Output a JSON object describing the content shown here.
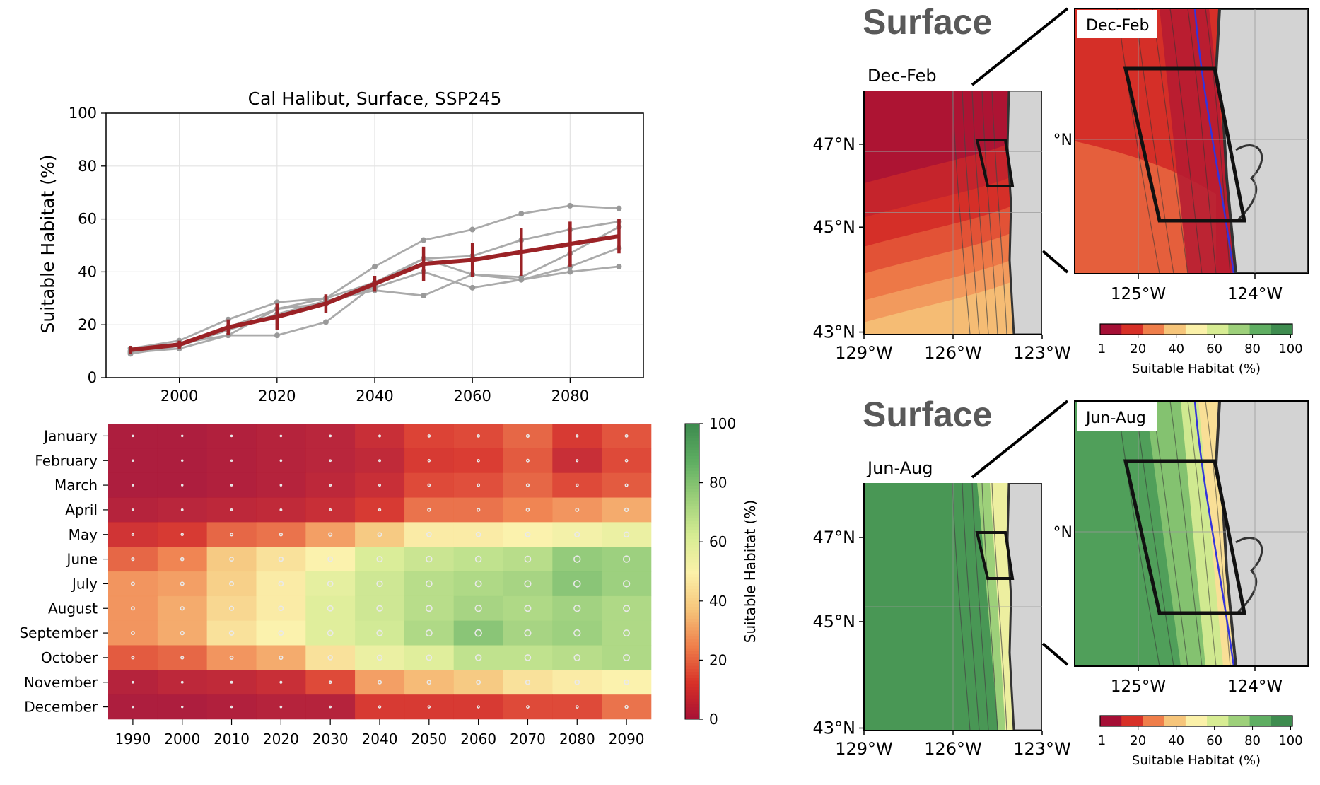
{
  "line_chart": {
    "title": "Cal Halibut, Surface, SSP245",
    "ylabel": "Suitable Habitat (%)",
    "xlim": [
      1985,
      2095
    ],
    "ylim": [
      0,
      100
    ],
    "xticks": [
      "2000",
      "2020",
      "2040",
      "2060",
      "2080"
    ],
    "yticks": [
      "0",
      "20",
      "40",
      "60",
      "80",
      "100"
    ]
  },
  "heatmap": {
    "months": [
      "January",
      "February",
      "March",
      "April",
      "May",
      "June",
      "July",
      "August",
      "September",
      "October",
      "November",
      "December"
    ],
    "decades": [
      "1990",
      "2000",
      "2010",
      "2020",
      "2030",
      "2040",
      "2050",
      "2060",
      "2070",
      "2080",
      "2090"
    ],
    "colorbar_label": "Suitable Habitat (%)",
    "colorbar_ticks": [
      "0",
      "20",
      "40",
      "60",
      "80",
      "100"
    ]
  },
  "maps": [
    {
      "heading": "Surface",
      "overview_label": "Dec-Feb",
      "inset_label": "Dec-Feb",
      "lat_labels": [
        "47°N",
        "45°N",
        "43°N"
      ],
      "lon_labels": [
        "129°W",
        "126°W",
        "123°W"
      ],
      "inset_lat_label": "°N",
      "inset_lon_labels": [
        "125°W",
        "124°W"
      ],
      "colorbar_ticks": [
        "1",
        "20",
        "40",
        "60",
        "80",
        "100"
      ],
      "colorbar_label": "Suitable Habitat (%)"
    },
    {
      "heading": "Surface",
      "overview_label": "Jun-Aug",
      "inset_label": "Jun-Aug",
      "lat_labels": [
        "47°N",
        "45°N",
        "43°N"
      ],
      "lon_labels": [
        "129°W",
        "126°W",
        "123°W"
      ],
      "inset_lat_label": "°N",
      "inset_lon_labels": [
        "125°W",
        "124°W"
      ],
      "colorbar_ticks": [
        "1",
        "20",
        "40",
        "60",
        "80",
        "100"
      ],
      "colorbar_label": "Suitable Habitat (%)"
    }
  ],
  "colors": {
    "ensemble_mean": "#9b2226",
    "members": "#aaaaaa",
    "land": "#d3d3d3",
    "coast": "#333333",
    "shelf_line": "#3333dd",
    "scale": [
      "#a50f35",
      "#d73027",
      "#ef7e4a",
      "#f6c57a",
      "#fbf1a9",
      "#d7ec93",
      "#9dd07a",
      "#5fae62",
      "#3e8c4f"
    ]
  },
  "chart_data": [
    {
      "type": "line",
      "title": "Cal Halibut, Surface, SSP245",
      "xlabel": "",
      "ylabel": "Suitable Habitat (%)",
      "xlim": [
        1985,
        2095
      ],
      "ylim": [
        0,
        100
      ],
      "grid": true,
      "x": [
        1990,
        2000,
        2010,
        2020,
        2030,
        2040,
        2050,
        2060,
        2070,
        2080,
        2090
      ],
      "series": [
        {
          "role": "mean",
          "values": [
            10.5,
            12.5,
            19,
            23,
            28,
            35.5,
            43,
            44.5,
            47.5,
            50.5,
            53.5
          ],
          "err": [
            1.5,
            1.5,
            3,
            5,
            3.5,
            3,
            6.5,
            6.5,
            9,
            8.5,
            6.5
          ]
        },
        {
          "role": "member",
          "values": [
            11,
            14,
            22,
            28.5,
            30,
            42,
            52,
            56,
            62,
            65,
            64
          ]
        },
        {
          "role": "member",
          "values": [
            10,
            12,
            19,
            26,
            30,
            36,
            45,
            46,
            52,
            56,
            59
          ]
        },
        {
          "role": "member",
          "values": [
            9.5,
            11,
            16,
            16,
            21,
            35,
            45,
            39,
            38,
            47,
            57
          ]
        },
        {
          "role": "member",
          "values": [
            9,
            12,
            18,
            24,
            29,
            33,
            31,
            39,
            37,
            40,
            42
          ]
        },
        {
          "role": "member",
          "values": [
            10,
            13,
            16,
            26,
            28,
            34,
            40,
            34,
            37,
            42,
            49
          ]
        }
      ]
    },
    {
      "type": "heatmap",
      "rows": [
        "January",
        "February",
        "March",
        "April",
        "May",
        "June",
        "July",
        "August",
        "September",
        "October",
        "November",
        "December"
      ],
      "columns": [
        "1990",
        "2000",
        "2010",
        "2020",
        "2030",
        "2040",
        "2050",
        "2060",
        "2070",
        "2080",
        "2090"
      ],
      "values": [
        [
          1,
          1,
          2,
          3,
          4,
          8,
          14,
          15,
          20,
          12,
          17
        ],
        [
          1,
          1,
          2,
          3,
          4,
          6,
          12,
          13,
          18,
          8,
          15
        ],
        [
          1,
          1,
          2,
          3,
          5,
          8,
          15,
          16,
          20,
          15,
          18
        ],
        [
          3,
          4,
          5,
          6,
          8,
          12,
          22,
          22,
          25,
          28,
          32
        ],
        [
          10,
          12,
          20,
          22,
          30,
          38,
          48,
          48,
          50,
          53,
          56
        ],
        [
          20,
          25,
          38,
          45,
          50,
          62,
          66,
          68,
          70,
          78,
          76
        ],
        [
          28,
          30,
          40,
          48,
          58,
          65,
          70,
          72,
          74,
          80,
          76
        ],
        [
          28,
          32,
          42,
          48,
          60,
          65,
          70,
          74,
          72,
          75,
          72
        ],
        [
          28,
          32,
          45,
          50,
          60,
          64,
          72,
          80,
          74,
          76,
          72
        ],
        [
          18,
          20,
          28,
          32,
          45,
          56,
          60,
          68,
          68,
          70,
          72
        ],
        [
          3,
          5,
          6,
          8,
          15,
          30,
          35,
          38,
          45,
          48,
          50
        ],
        [
          1,
          1,
          2,
          3,
          3,
          12,
          12,
          12,
          15,
          15,
          22
        ]
      ],
      "colorbar": {
        "label": "Suitable Habitat (%)",
        "range": [
          0,
          100
        ]
      }
    }
  ]
}
